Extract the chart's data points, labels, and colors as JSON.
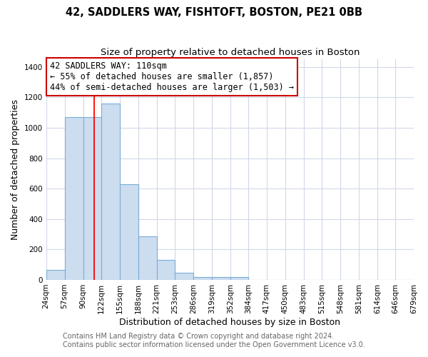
{
  "title": "42, SADDLERS WAY, FISHTOFT, BOSTON, PE21 0BB",
  "subtitle": "Size of property relative to detached houses in Boston",
  "xlabel": "Distribution of detached houses by size in Boston",
  "ylabel": "Number of detached properties",
  "bar_values": [
    65,
    1070,
    1070,
    1160,
    630,
    285,
    130,
    45,
    20,
    20,
    20,
    0,
    0,
    0,
    0,
    0,
    0,
    0,
    0,
    0
  ],
  "bin_labels": [
    "24sqm",
    "57sqm",
    "90sqm",
    "122sqm",
    "155sqm",
    "188sqm",
    "221sqm",
    "253sqm",
    "286sqm",
    "319sqm",
    "352sqm",
    "384sqm",
    "417sqm",
    "450sqm",
    "483sqm",
    "515sqm",
    "548sqm",
    "581sqm",
    "614sqm",
    "646sqm",
    "679sqm"
  ],
  "bin_edges": [
    24,
    57,
    90,
    122,
    155,
    188,
    221,
    253,
    286,
    319,
    352,
    384,
    417,
    450,
    483,
    515,
    548,
    581,
    614,
    646,
    679
  ],
  "bar_color": "#ccddf0",
  "bar_edge_color": "#7aadd4",
  "property_value": 110,
  "red_line_x": 110,
  "annotation_line1": "42 SADDLERS WAY: 110sqm",
  "annotation_line2": "← 55% of detached houses are smaller (1,857)",
  "annotation_line3": "44% of semi-detached houses are larger (1,503) →",
  "annotation_box_color": "#ffffff",
  "annotation_box_edge_color": "#cc0000",
  "ylim": [
    0,
    1450
  ],
  "yticks": [
    0,
    200,
    400,
    600,
    800,
    1000,
    1200,
    1400
  ],
  "plot_bg_color": "#ffffff",
  "fig_bg_color": "#ffffff",
  "grid_color": "#d0d8e8",
  "title_fontsize": 10.5,
  "subtitle_fontsize": 9.5,
  "axis_label_fontsize": 9,
  "tick_fontsize": 7.5,
  "annotation_fontsize": 8.5,
  "footer_fontsize": 7
}
